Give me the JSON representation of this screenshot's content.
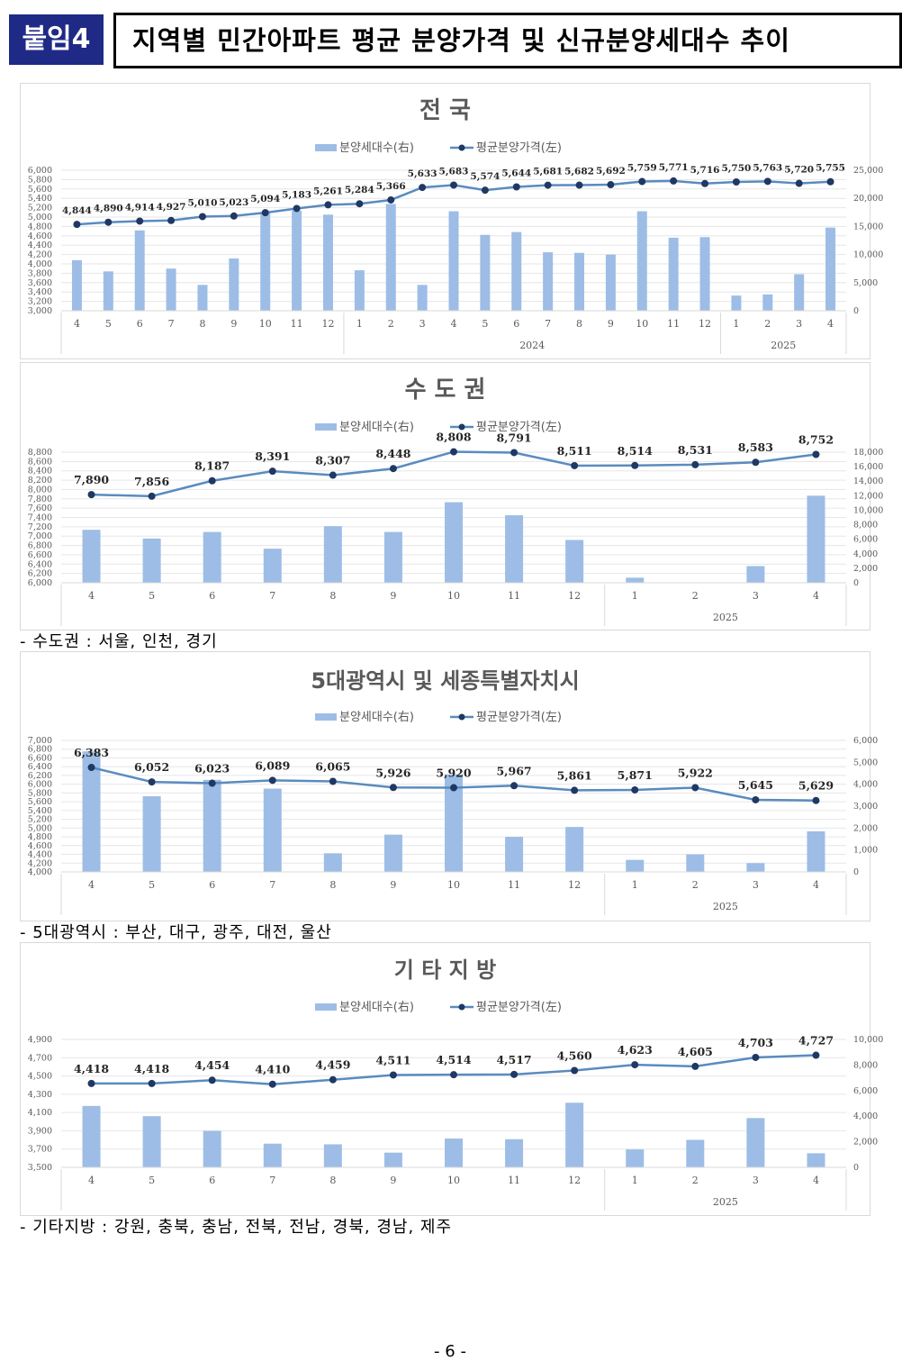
{
  "header": {
    "badge": "붙임4",
    "title": "지역별 민간아파트 평균 분양가격 및 신규분양세대수 추이"
  },
  "legend": {
    "bar_label": "분양세대수(右)",
    "line_label": "평균분양가격(左)"
  },
  "colors": {
    "bar": "#9dbde6",
    "line": "#5a8bbf",
    "marker": "#1f3864"
  },
  "notes": [
    "- 수도권 : 서울, 인천, 경기",
    "- 5대광역시 : 부산, 대구, 광주, 대전, 울산",
    "- 기타지방 : 강원, 충북, 충남, 전북, 전남, 경북, 경남, 제주"
  ],
  "page_number": "- 6 -",
  "chart_data": [
    {
      "type": "bar+line",
      "title": "전 국",
      "categories": [
        "4",
        "5",
        "6",
        "7",
        "8",
        "9",
        "10",
        "11",
        "12",
        "1",
        "2",
        "3",
        "4",
        "5",
        "6",
        "7",
        "8",
        "9",
        "10",
        "11",
        "12",
        "1",
        "2",
        "3",
        "4"
      ],
      "year_groups": [
        {
          "label": "",
          "count": 9
        },
        {
          "label": "2024",
          "count": 12
        },
        {
          "label": "2025",
          "count": 4
        }
      ],
      "series": [
        {
          "name": "분양세대수(右)",
          "axis": "right",
          "values": [
            9000,
            7000,
            14300,
            7500,
            4600,
            9300,
            17600,
            17800,
            17100,
            7200,
            19000,
            4600,
            17700,
            13500,
            14000,
            10400,
            10300,
            10000,
            17700,
            13000,
            13100,
            2700,
            2900,
            6500,
            14800
          ]
        },
        {
          "name": "평균분양가격(左)",
          "axis": "left",
          "values": [
            4844,
            4890,
            4914,
            4927,
            5010,
            5023,
            5094,
            5183,
            5261,
            5284,
            5366,
            5633,
            5683,
            5574,
            5644,
            5681,
            5682,
            5692,
            5759,
            5771,
            5716,
            5750,
            5763,
            5720,
            5755
          ],
          "labels": [
            "4,844",
            "4,890",
            "4,914",
            "4,927",
            "5,010",
            "5,023",
            "5,094",
            "5,183",
            "5,261",
            "5,284",
            "5,366",
            "5,633",
            "5,683",
            "5,574",
            "5,644",
            "5,681",
            "5,682",
            "5,692",
            "5,759",
            "5,771",
            "5,716",
            "5,750",
            "5,763",
            "5,720",
            "5,755"
          ]
        }
      ],
      "ylim_left": [
        3000,
        6000
      ],
      "yticks_left": [
        "3,000",
        "3,200",
        "3,400",
        "3,600",
        "3,800",
        "4,000",
        "4,200",
        "4,400",
        "4,600",
        "4,800",
        "5,000",
        "5,200",
        "5,400",
        "5,600",
        "5,800",
        "6,000"
      ],
      "ylim_right": [
        0,
        25000
      ],
      "yticks_right": [
        "0",
        "5,000",
        "10,000",
        "15,000",
        "20,000",
        "25,000"
      ],
      "grid": true,
      "legend_position": "top"
    },
    {
      "type": "bar+line",
      "title": "수 도 권",
      "categories": [
        "4",
        "5",
        "6",
        "7",
        "8",
        "9",
        "10",
        "11",
        "12",
        "1",
        "2",
        "3",
        "4"
      ],
      "year_groups": [
        {
          "label": "",
          "count": 9
        },
        {
          "label": "2025",
          "count": 4
        }
      ],
      "series": [
        {
          "name": "분양세대수(右)",
          "axis": "right",
          "values": [
            7300,
            6100,
            7000,
            4700,
            7800,
            7000,
            11100,
            9300,
            5900,
            700,
            0,
            2300,
            12000
          ]
        },
        {
          "name": "평균분양가격(左)",
          "axis": "left",
          "values": [
            7890,
            7856,
            8187,
            8391,
            8307,
            8448,
            8808,
            8791,
            8511,
            8514,
            8531,
            8583,
            8752
          ],
          "labels": [
            "7,890",
            "7,856",
            "8,187",
            "8,391",
            "8,307",
            "8,448",
            "8,808",
            "8,791",
            "8,511",
            "8,514",
            "8,531",
            "8,583",
            "8,752"
          ]
        }
      ],
      "ylim_left": [
        6000,
        8800
      ],
      "yticks_left": [
        "6,000",
        "6,200",
        "6,400",
        "6,600",
        "6,800",
        "7,000",
        "7,200",
        "7,400",
        "7,600",
        "7,800",
        "8,000",
        "8,200",
        "8,400",
        "8,600",
        "8,800"
      ],
      "ylim_right": [
        0,
        18000
      ],
      "yticks_right": [
        "0",
        "2,000",
        "4,000",
        "6,000",
        "8,000",
        "10,000",
        "12,000",
        "14,000",
        "16,000",
        "18,000"
      ],
      "grid": true,
      "legend_position": "top"
    },
    {
      "type": "bar+line",
      "title": "5대광역시 및 세종특별자치시",
      "categories": [
        "4",
        "5",
        "6",
        "7",
        "8",
        "9",
        "10",
        "11",
        "12",
        "1",
        "2",
        "3",
        "4"
      ],
      "year_groups": [
        {
          "label": "",
          "count": 9
        },
        {
          "label": "2025",
          "count": 4
        }
      ],
      "series": [
        {
          "name": "분양세대수(右)",
          "axis": "right",
          "values": [
            5500,
            3450,
            4200,
            3800,
            850,
            1700,
            4450,
            1600,
            2050,
            550,
            800,
            400,
            1850
          ]
        },
        {
          "name": "평균분양가격(左)",
          "axis": "left",
          "values": [
            6383,
            6052,
            6023,
            6089,
            6065,
            5926,
            5920,
            5967,
            5861,
            5871,
            5922,
            5645,
            5629
          ],
          "labels": [
            "6,383",
            "6,052",
            "6,023",
            "6,089",
            "6,065",
            "5,926",
            "5,920",
            "5,967",
            "5,861",
            "5,871",
            "5,922",
            "5,645",
            "5,629"
          ]
        }
      ],
      "ylim_left": [
        4000,
        7000
      ],
      "yticks_left": [
        "4,000",
        "4,200",
        "4,400",
        "4,600",
        "4,800",
        "5,000",
        "5,200",
        "5,400",
        "5,600",
        "5,800",
        "6,000",
        "6,200",
        "6,400",
        "6,600",
        "6,800",
        "7,000"
      ],
      "ylim_right": [
        0,
        6000
      ],
      "yticks_right": [
        "0",
        "1,000",
        "2,000",
        "3,000",
        "4,000",
        "5,000",
        "6,000"
      ],
      "grid": true,
      "legend_position": "top"
    },
    {
      "type": "bar+line",
      "title": "기 타 지 방",
      "categories": [
        "4",
        "5",
        "6",
        "7",
        "8",
        "9",
        "10",
        "11",
        "12",
        "1",
        "2",
        "3",
        "4"
      ],
      "year_groups": [
        {
          "label": "",
          "count": 9
        },
        {
          "label": "2025",
          "count": 4
        }
      ],
      "series": [
        {
          "name": "분양세대수(右)",
          "axis": "right",
          "values": [
            4800,
            4000,
            2850,
            1850,
            1800,
            1150,
            2250,
            2200,
            5050,
            1400,
            2150,
            3850,
            1100
          ]
        },
        {
          "name": "평균분양가격(左)",
          "axis": "left",
          "values": [
            4418,
            4418,
            4454,
            4410,
            4459,
            4511,
            4514,
            4517,
            4560,
            4623,
            4605,
            4703,
            4727
          ],
          "labels": [
            "4,418",
            "4,418",
            "4,454",
            "4,410",
            "4,459",
            "4,511",
            "4,514",
            "4,517",
            "4,560",
            "4,623",
            "4,605",
            "4,703",
            "4,727"
          ]
        }
      ],
      "ylim_left": [
        3500,
        4900
      ],
      "yticks_left": [
        "3,500",
        "3,700",
        "3,900",
        "4,100",
        "4,300",
        "4,500",
        "4,700",
        "4,900"
      ],
      "ylim_right": [
        0,
        10000
      ],
      "yticks_right": [
        "0",
        "2,000",
        "4,000",
        "6,000",
        "8,000",
        "10,000"
      ],
      "grid": true,
      "legend_position": "top"
    }
  ]
}
